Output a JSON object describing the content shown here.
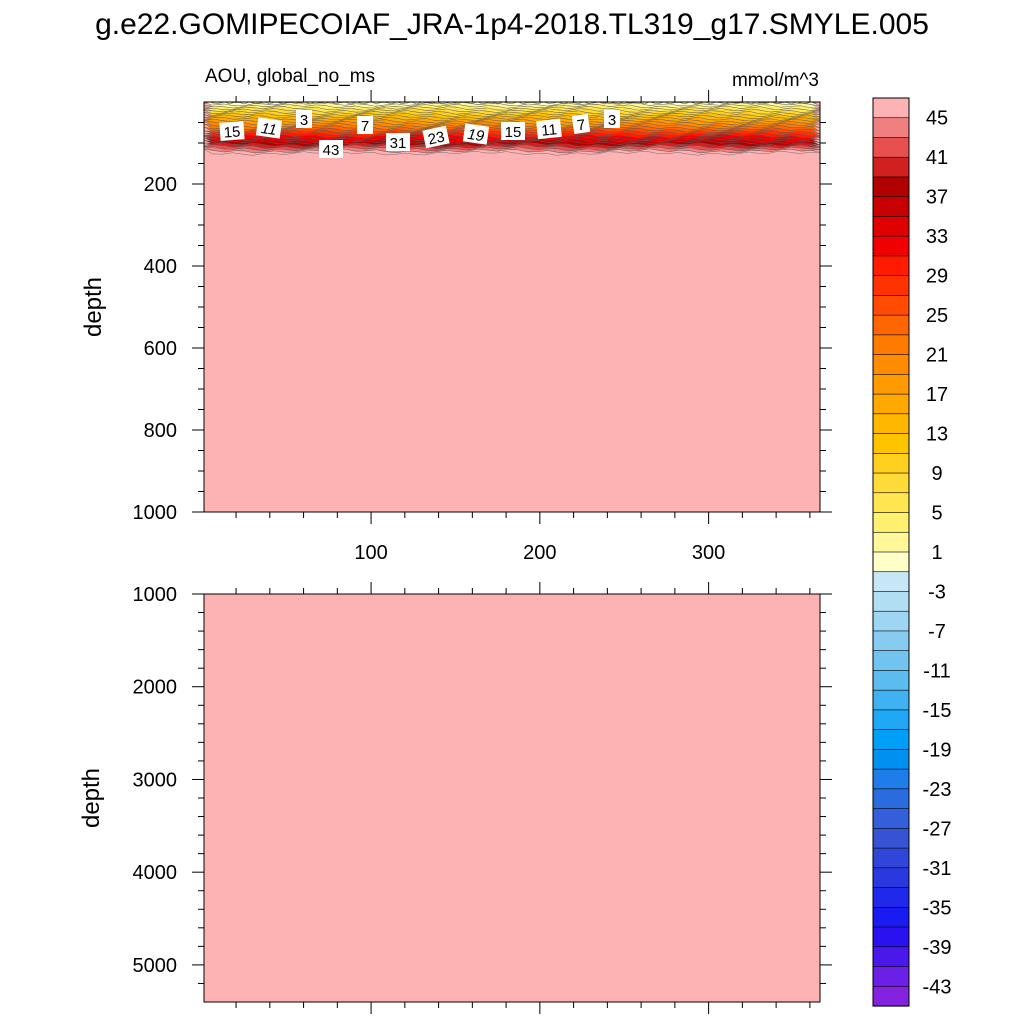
{
  "title": "g.e22.GOMIPECOIAF_JRA-1p4-2018.TL319_g17.SMYLE.005",
  "chart_data": [
    {
      "type": "heatmap",
      "panel": "upper",
      "left_label": "AOU, global_no_ms",
      "right_label": "mmol/m^3",
      "ylabel": "depth",
      "xlabel": "",
      "xlim": [
        1,
        366
      ],
      "ylim": [
        1000,
        0
      ],
      "y_reversed": true,
      "x_ticks": [
        100,
        200,
        300
      ],
      "x_tick_labels": [
        "100",
        "200",
        "300"
      ],
      "y_ticks": [
        200,
        400,
        600,
        800,
        1000
      ],
      "y_tick_labels": [
        "200",
        "400",
        "600",
        "800",
        "1000"
      ],
      "background_value": 47,
      "surface_layer_depth": [
        0,
        125
      ],
      "contour_labels": [
        {
          "x": 17,
          "depth": 70,
          "value": "15"
        },
        {
          "x": 39,
          "depth": 65,
          "value": "11"
        },
        {
          "x": 60,
          "depth": 40,
          "value": "3"
        },
        {
          "x": 96,
          "depth": 57,
          "value": "7"
        },
        {
          "x": 88,
          "depth": 118,
          "value": "43"
        },
        {
          "x": 116,
          "depth": 100,
          "value": "31"
        },
        {
          "x": 139,
          "depth": 94,
          "value": "23"
        },
        {
          "x": 160,
          "depth": 80,
          "value": "19"
        },
        {
          "x": 182,
          "depth": 75,
          "value": "15"
        },
        {
          "x": 206,
          "depth": 70,
          "value": "11"
        },
        {
          "x": 225,
          "depth": 55,
          "value": "7"
        },
        {
          "x": 242,
          "depth": 45,
          "value": "3"
        }
      ]
    },
    {
      "type": "heatmap",
      "panel": "lower",
      "ylabel": "depth",
      "xlim": [
        1,
        366
      ],
      "ylim": [
        5400,
        1000
      ],
      "y_reversed": true,
      "y_ticks": [
        1000,
        2000,
        3000,
        4000,
        5000
      ],
      "y_tick_labels": [
        "1000",
        "2000",
        "3000",
        "4000",
        "5000"
      ],
      "background_value": 47
    }
  ],
  "colorbar": {
    "levels": [
      -45,
      -43,
      -41,
      -39,
      -37,
      -35,
      -33,
      -31,
      -29,
      -27,
      -25,
      -23,
      -21,
      -19,
      -17,
      -15,
      -13,
      -11,
      -9,
      -7,
      -5,
      -3,
      -1,
      1,
      3,
      5,
      7,
      9,
      11,
      13,
      15,
      17,
      19,
      21,
      23,
      25,
      27,
      29,
      31,
      33,
      35,
      37,
      39,
      41,
      43,
      45
    ],
    "tick_labels": [
      "45",
      "41",
      "37",
      "33",
      "29",
      "25",
      "21",
      "17",
      "13",
      "9",
      "5",
      "1",
      "-3",
      "-7",
      "-11",
      "-15",
      "-19",
      "-23",
      "-27",
      "-31",
      "-35",
      "-39",
      "-43"
    ],
    "colors_top_to_bottom": [
      "#fdb3b3",
      "#f08080",
      "#e85050",
      "#d02020",
      "#b00000",
      "#c80000",
      "#e00000",
      "#f00000",
      "#ff1a00",
      "#ff3300",
      "#ff4c00",
      "#ff6600",
      "#ff7b00",
      "#ff8c00",
      "#ff9a00",
      "#ffa800",
      "#ffb700",
      "#ffc400",
      "#ffd020",
      "#ffdb3a",
      "#ffe650",
      "#fff070",
      "#fff79a",
      "#ffffc8",
      "#c7e6f6",
      "#b2def4",
      "#9dd5f2",
      "#87ccf0",
      "#71c4ef",
      "#5cbcef",
      "#40b2f2",
      "#1ea8f5",
      "#009ff7",
      "#0090f0",
      "#1e7de8",
      "#2a6ce0",
      "#3360da",
      "#3653d4",
      "#3046d8",
      "#2a38e0",
      "#2029ea",
      "#1a1af3",
      "#2a12f0",
      "#4a18ea",
      "#6a20e6",
      "#8422e0"
    ]
  }
}
